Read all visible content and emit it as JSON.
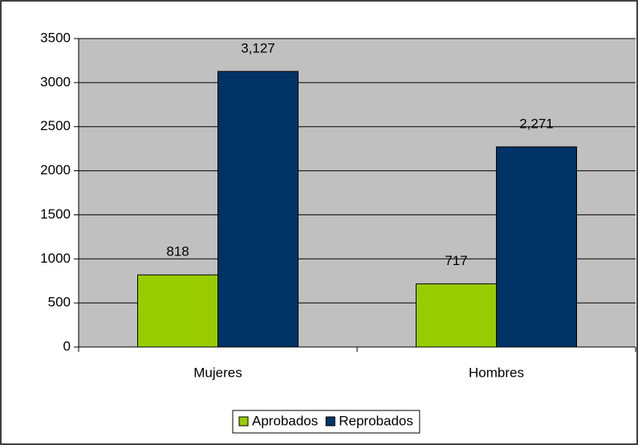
{
  "chart_data": {
    "type": "bar",
    "categories": [
      "Mujeres",
      "Hombres"
    ],
    "series": [
      {
        "name": "Aprobados",
        "color": "#99cc00",
        "values": [
          818,
          717
        ],
        "value_labels": [
          "818",
          "717"
        ]
      },
      {
        "name": "Reprobados",
        "color": "#003366",
        "values": [
          3127,
          2271
        ],
        "value_labels": [
          "3,127",
          "2,271"
        ]
      }
    ],
    "ylim": [
      0,
      3500
    ],
    "yticks": [
      0,
      500,
      1000,
      1500,
      2000,
      2500,
      3000,
      3500
    ],
    "grid": true,
    "legend": "bottom",
    "plot_background": "#c0c0c0"
  }
}
